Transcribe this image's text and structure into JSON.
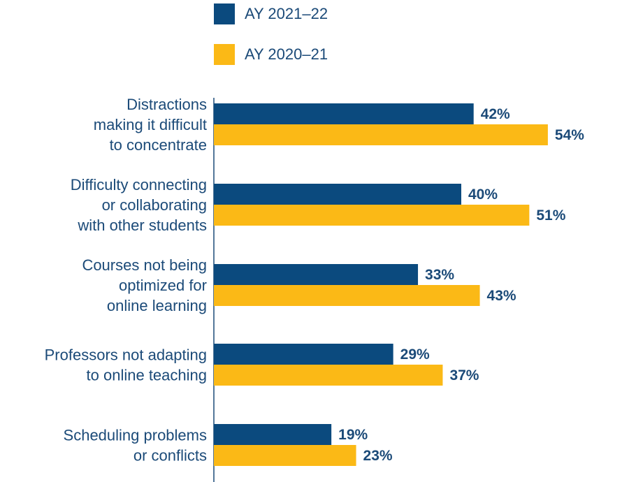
{
  "chart_data": {
    "type": "bar",
    "orientation": "horizontal",
    "categories": [
      [
        "Distractions",
        "making it difficult",
        "to concentrate"
      ],
      [
        "Difficulty connecting",
        "or collaborating",
        "with other students"
      ],
      [
        "Courses not being",
        "optimized for",
        "online learning"
      ],
      [
        "Professors not adapting",
        "to online teaching"
      ],
      [
        "Scheduling problems",
        "or conflicts"
      ]
    ],
    "series": [
      {
        "name": "AY 2021–22",
        "color": "#0b4a7e",
        "values": [
          42,
          40,
          33,
          29,
          19
        ],
        "labels": [
          "42%",
          "40%",
          "33%",
          "29%",
          "19%"
        ]
      },
      {
        "name": "AY 2020–21",
        "color": "#fbb916",
        "values": [
          54,
          51,
          43,
          37,
          23
        ],
        "labels": [
          "54%",
          "51%",
          "43%",
          "37%",
          "23%"
        ]
      }
    ],
    "xlim": [
      0,
      100
    ],
    "grid": false,
    "legend_position": "top"
  }
}
